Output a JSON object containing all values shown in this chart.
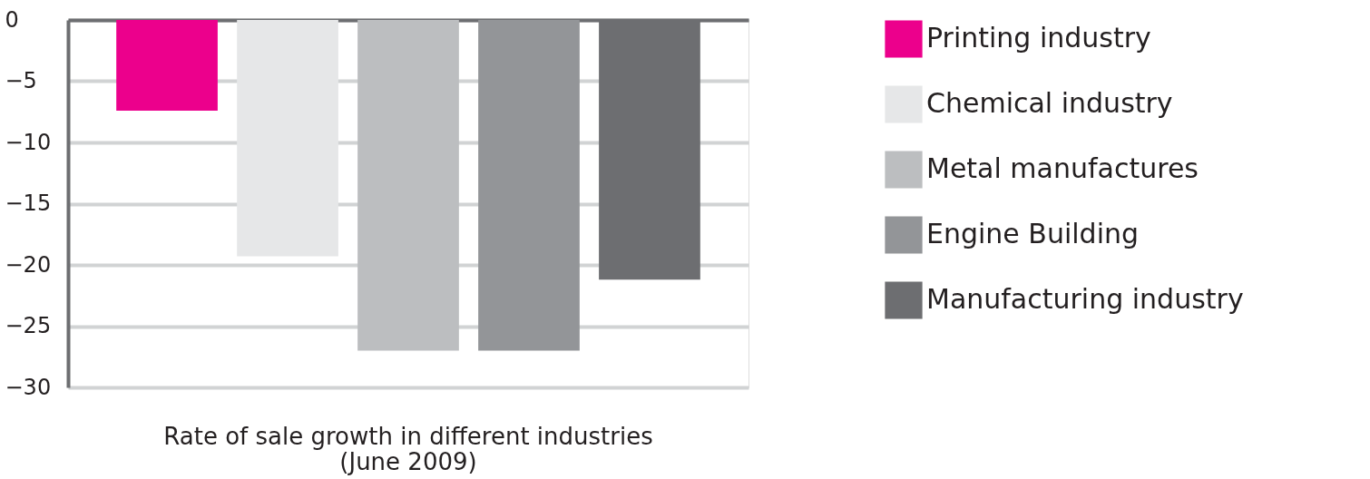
{
  "chart_data": {
    "type": "bar",
    "title": "Rate of sale growth in different industries\n(June 2009)",
    "categories": [
      null
    ],
    "series": [
      {
        "name": "Printing industry",
        "color": "#ec008c",
        "values": [
          -7.4
        ]
      },
      {
        "name": "Chemical industry",
        "color": "#e6e7e8",
        "values": [
          -19.3
        ]
      },
      {
        "name": "Metal manufactures",
        "color": "#bcbec0",
        "values": [
          -27
        ]
      },
      {
        "name": "Engine Building",
        "color": "#939598",
        "values": [
          -27
        ]
      },
      {
        "name": "Manufacturing industry",
        "color": "#6d6e71",
        "values": [
          -21.2
        ]
      }
    ],
    "ylim": [
      -30,
      0
    ],
    "yticks": [
      0,
      -5,
      -10,
      -15,
      -20,
      -25,
      -30
    ],
    "grid": "y",
    "legend": "right"
  }
}
